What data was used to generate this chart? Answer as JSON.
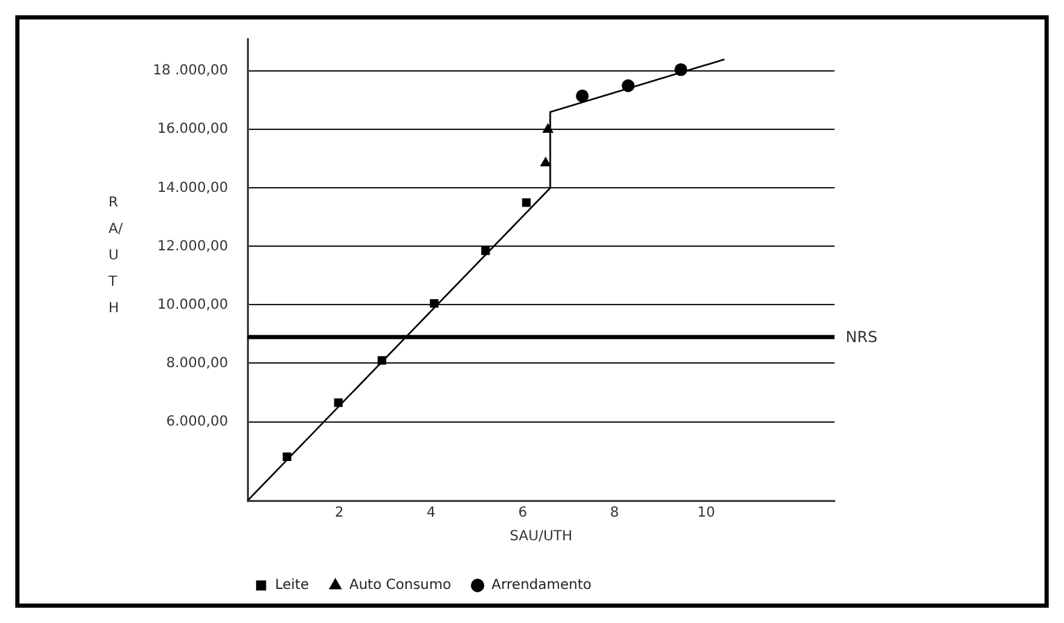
{
  "chart_data": {
    "type": "scatter",
    "xlabel": "SAU/UTH",
    "ylabel": "RA/UTH",
    "xlim": [
      0,
      12.8
    ],
    "xticks": [
      2,
      4,
      6,
      8,
      10
    ],
    "ylim": [
      3300,
      19100
    ],
    "yticks": [
      {
        "value": 6000,
        "label": "6.000,00"
      },
      {
        "value": 8000,
        "label": "8.000,00"
      },
      {
        "value": 10000,
        "label": "10.000,00"
      },
      {
        "value": 12000,
        "label": "12.000,00"
      },
      {
        "value": 14000,
        "label": "14.000,00"
      },
      {
        "value": 16000,
        "label": "16.000,00"
      },
      {
        "value": 18000,
        "label": "18 .000,00"
      }
    ],
    "grid": "y",
    "legend": "bottom",
    "series": [
      {
        "type": "line",
        "color": "#000000",
        "marker": "none",
        "x": [
          0,
          6.6,
          6.6,
          10.4
        ],
        "values": [
          3300,
          14000,
          16600,
          18400
        ]
      },
      {
        "name": "Leite",
        "color": "#000000",
        "marker": "square",
        "x": [
          0.86,
          1.98,
          2.93,
          4.07,
          5.19,
          6.08
        ],
        "values": [
          4800,
          6650,
          8100,
          10050,
          11850,
          13500
        ]
      },
      {
        "name": "Auto Consumo",
        "color": "#000000",
        "marker": "triangle",
        "x": [
          6.5,
          6.55
        ],
        "values": [
          14850,
          16000
        ]
      },
      {
        "name": "Arrendamento",
        "color": "#000000",
        "marker": "circle",
        "x": [
          7.3,
          8.3,
          9.45
        ],
        "values": [
          17150,
          17500,
          18050
        ]
      }
    ],
    "ref_lines": [
      {
        "axis": "y",
        "value": 8900,
        "label": "NRS",
        "color": "#000000"
      }
    ]
  }
}
